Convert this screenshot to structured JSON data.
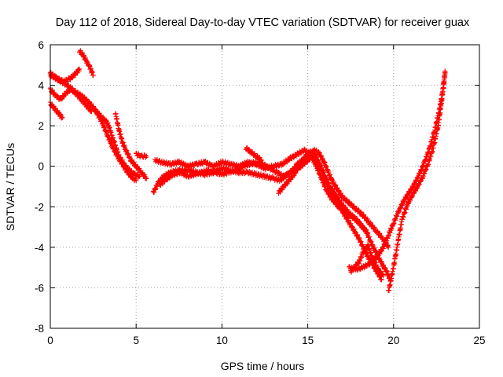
{
  "chart_data": {
    "type": "scatter",
    "title": "Day 112 of 2018, Sidereal Day-to-day VTEC variation (SDTVAR) for receiver guax",
    "xlabel": "GPS time / hours",
    "ylabel": "SDTVAR / TECUs",
    "xlim": [
      0,
      25
    ],
    "ylim": [
      -8,
      6
    ],
    "x_ticks": [
      0,
      5,
      10,
      15,
      20,
      25
    ],
    "y_ticks": [
      -8,
      -6,
      -4,
      -2,
      0,
      2,
      4,
      6
    ],
    "x_tick_labels": [
      "0",
      "5",
      "10",
      "15",
      "20",
      "25"
    ],
    "y_tick_labels": [
      "-8",
      "-6",
      "-4",
      "-2",
      "0",
      "2",
      "4",
      "6"
    ],
    "grid": true,
    "legend": "none",
    "marker": "plus",
    "color": "#ff0000",
    "series": [
      {
        "tracks": [
          [
            0.0,
            4.6
          ],
          [
            0.3,
            4.4
          ],
          [
            0.6,
            4.2
          ],
          [
            1.0,
            4.0
          ],
          [
            1.4,
            3.7
          ],
          [
            1.8,
            3.5
          ],
          [
            2.2,
            3.2
          ],
          [
            2.6,
            2.8
          ],
          [
            3.0,
            2.2
          ],
          [
            3.3,
            1.6
          ],
          [
            3.6,
            1.0
          ],
          [
            3.9,
            0.5
          ],
          [
            4.2,
            0.1
          ],
          [
            4.5,
            -0.3
          ],
          [
            4.8,
            -0.6
          ],
          [
            5.0,
            -0.7
          ]
        ]
      },
      {
        "tracks": [
          [
            0.0,
            3.8
          ],
          [
            0.3,
            3.5
          ],
          [
            0.6,
            3.3
          ],
          [
            0.9,
            3.6
          ],
          [
            1.2,
            3.8
          ],
          [
            1.5,
            3.6
          ],
          [
            1.8,
            3.3
          ],
          [
            2.1,
            3.0
          ],
          [
            2.4,
            2.7
          ]
        ]
      },
      {
        "tracks": [
          [
            0.0,
            3.1
          ],
          [
            0.3,
            2.8
          ],
          [
            0.6,
            2.5
          ],
          [
            0.7,
            2.4
          ]
        ]
      },
      {
        "tracks": [
          [
            0.0,
            4.5
          ],
          [
            0.4,
            4.3
          ],
          [
            0.8,
            4.2
          ],
          [
            1.1,
            4.3
          ],
          [
            1.4,
            4.5
          ],
          [
            1.7,
            4.8
          ]
        ]
      },
      {
        "tracks": [
          [
            1.7,
            5.7
          ],
          [
            1.9,
            5.5
          ],
          [
            2.1,
            5.2
          ],
          [
            2.3,
            4.9
          ],
          [
            2.5,
            4.5
          ]
        ]
      },
      {
        "tracks": [
          [
            2.6,
            2.8
          ],
          [
            2.8,
            2.6
          ],
          [
            3.0,
            2.4
          ],
          [
            3.2,
            2.3
          ],
          [
            3.4,
            2.0
          ],
          [
            3.6,
            1.5
          ],
          [
            3.8,
            1.0
          ],
          [
            4.0,
            0.5
          ],
          [
            4.3,
            0.1
          ],
          [
            4.6,
            -0.2
          ],
          [
            4.9,
            -0.4
          ],
          [
            5.2,
            -0.5
          ]
        ]
      },
      {
        "tracks": [
          [
            3.8,
            2.6
          ],
          [
            4.0,
            1.8
          ],
          [
            4.2,
            1.2
          ],
          [
            4.4,
            0.8
          ],
          [
            4.7,
            0.3
          ],
          [
            5.0,
            0.0
          ],
          [
            5.3,
            -0.3
          ],
          [
            5.6,
            -0.6
          ]
        ]
      },
      {
        "tracks": [
          [
            5.0,
            0.6
          ],
          [
            5.3,
            0.5
          ],
          [
            5.6,
            0.5
          ]
        ]
      },
      {
        "tracks": [
          [
            6.0,
            -1.3
          ],
          [
            6.3,
            -0.8
          ],
          [
            6.6,
            -0.5
          ],
          [
            7.0,
            -0.3
          ],
          [
            7.5,
            -0.2
          ],
          [
            8.0,
            -0.2
          ],
          [
            8.5,
            -0.3
          ],
          [
            9.0,
            -0.4
          ],
          [
            9.5,
            -0.3
          ],
          [
            10.0,
            -0.1
          ],
          [
            10.5,
            -0.2
          ],
          [
            11.0,
            -0.3
          ],
          [
            11.5,
            -0.3
          ],
          [
            12.0,
            -0.4
          ],
          [
            12.5,
            -0.5
          ],
          [
            13.0,
            -0.6
          ],
          [
            13.4,
            -0.7
          ],
          [
            13.8,
            -0.4
          ],
          [
            14.2,
            -0.2
          ],
          [
            14.6,
            0.0
          ],
          [
            15.0,
            0.3
          ],
          [
            15.3,
            0.5
          ],
          [
            15.6,
            0.2
          ],
          [
            15.9,
            -0.4
          ],
          [
            16.2,
            -1.0
          ],
          [
            16.6,
            -1.6
          ],
          [
            17.0,
            -2.2
          ],
          [
            17.5,
            -2.9
          ],
          [
            18.0,
            -3.6
          ],
          [
            18.4,
            -4.3
          ],
          [
            18.8,
            -4.9
          ],
          [
            19.1,
            -5.3
          ],
          [
            19.3,
            -5.6
          ]
        ]
      },
      {
        "tracks": [
          [
            6.1,
            0.3
          ],
          [
            6.5,
            0.2
          ],
          [
            7.0,
            0.1
          ],
          [
            7.5,
            0.2
          ],
          [
            8.0,
            0.0
          ],
          [
            8.5,
            0.1
          ],
          [
            9.0,
            0.2
          ],
          [
            9.5,
            0.0
          ],
          [
            10.0,
            0.2
          ],
          [
            10.5,
            0.1
          ],
          [
            11.0,
            0.0
          ],
          [
            11.5,
            0.2
          ],
          [
            12.0,
            0.1
          ],
          [
            12.5,
            -0.1
          ],
          [
            13.0,
            0.0
          ],
          [
            13.5,
            0.1
          ],
          [
            14.0,
            0.4
          ],
          [
            14.4,
            0.6
          ],
          [
            14.8,
            0.8
          ],
          [
            15.2,
            0.5
          ],
          [
            15.5,
            0.0
          ],
          [
            15.8,
            -0.6
          ],
          [
            16.1,
            -1.2
          ],
          [
            16.4,
            -1.6
          ],
          [
            16.8,
            -2.0
          ],
          [
            17.2,
            -2.3
          ],
          [
            17.6,
            -2.5
          ],
          [
            18.0,
            -2.8
          ],
          [
            18.4,
            -3.2
          ],
          [
            18.7,
            -3.8
          ],
          [
            19.0,
            -4.3
          ],
          [
            19.3,
            -4.8
          ],
          [
            19.6,
            -5.2
          ],
          [
            19.8,
            -5.6
          ]
        ]
      },
      {
        "tracks": [
          [
            6.4,
            -0.9
          ],
          [
            6.8,
            -0.6
          ],
          [
            7.2,
            -0.4
          ],
          [
            7.6,
            -0.3
          ],
          [
            8.0,
            -0.5
          ],
          [
            8.4,
            -0.4
          ],
          [
            8.8,
            -0.3
          ],
          [
            9.2,
            -0.2
          ],
          [
            9.6,
            -0.3
          ],
          [
            10.0,
            -0.4
          ],
          [
            10.4,
            -0.3
          ],
          [
            10.8,
            -0.2
          ],
          [
            11.2,
            0.0
          ],
          [
            11.6,
            0.1
          ],
          [
            12.0,
            0.2
          ],
          [
            12.4,
            0.1
          ],
          [
            12.8,
            -0.1
          ],
          [
            13.2,
            -0.3
          ],
          [
            13.6,
            -0.5
          ],
          [
            14.0,
            -0.3
          ],
          [
            14.4,
            0.1
          ],
          [
            14.8,
            0.4
          ],
          [
            15.1,
            0.7
          ],
          [
            15.4,
            0.6
          ],
          [
            15.7,
            0.1
          ],
          [
            16.0,
            -0.5
          ],
          [
            16.3,
            -1.0
          ],
          [
            16.6,
            -1.4
          ],
          [
            17.0,
            -1.9
          ],
          [
            17.4,
            -2.3
          ],
          [
            17.8,
            -2.6
          ],
          [
            18.2,
            -3.0
          ],
          [
            18.5,
            -3.3
          ]
        ]
      },
      {
        "tracks": [
          [
            11.4,
            0.9
          ],
          [
            11.7,
            0.7
          ],
          [
            12.0,
            0.5
          ],
          [
            12.3,
            0.3
          ]
        ]
      },
      {
        "tracks": [
          [
            13.3,
            -1.3
          ],
          [
            13.6,
            -1.0
          ],
          [
            13.9,
            -0.7
          ],
          [
            14.2,
            -0.4
          ],
          [
            14.5,
            0.0
          ],
          [
            14.8,
            0.3
          ],
          [
            15.1,
            0.6
          ],
          [
            15.4,
            0.8
          ],
          [
            15.7,
            0.6
          ],
          [
            16.0,
            0.1
          ],
          [
            16.2,
            -0.3
          ],
          [
            16.4,
            -0.7
          ],
          [
            16.7,
            -1.1
          ],
          [
            17.0,
            -1.5
          ],
          [
            17.4,
            -1.8
          ],
          [
            17.8,
            -2.1
          ],
          [
            18.2,
            -2.4
          ],
          [
            18.6,
            -2.8
          ],
          [
            19.0,
            -3.2
          ],
          [
            19.4,
            -3.6
          ],
          [
            19.7,
            -4.0
          ]
        ]
      },
      {
        "tracks": [
          [
            17.4,
            -5.0
          ],
          [
            17.8,
            -5.1
          ],
          [
            18.2,
            -5.0
          ],
          [
            18.6,
            -4.8
          ],
          [
            19.0,
            -4.5
          ],
          [
            19.4,
            -4.0
          ],
          [
            19.7,
            -3.4
          ],
          [
            20.0,
            -2.8
          ],
          [
            20.3,
            -2.2
          ],
          [
            20.6,
            -1.7
          ],
          [
            20.9,
            -1.3
          ],
          [
            21.2,
            -0.9
          ],
          [
            21.5,
            -0.4
          ],
          [
            21.8,
            0.2
          ],
          [
            22.1,
            0.9
          ],
          [
            22.4,
            1.8
          ],
          [
            22.7,
            2.9
          ],
          [
            22.9,
            3.9
          ],
          [
            23.0,
            4.6
          ]
        ]
      },
      {
        "tracks": [
          [
            19.7,
            -6.2
          ],
          [
            19.9,
            -5.4
          ],
          [
            20.1,
            -4.5
          ],
          [
            20.3,
            -3.5
          ],
          [
            20.5,
            -2.6
          ],
          [
            20.8,
            -1.9
          ],
          [
            21.1,
            -1.4
          ],
          [
            21.4,
            -1.0
          ],
          [
            21.7,
            -0.5
          ],
          [
            22.0,
            0.1
          ],
          [
            22.3,
            0.9
          ],
          [
            22.6,
            2.0
          ],
          [
            22.8,
            3.2
          ],
          [
            23.0,
            4.7
          ]
        ]
      },
      {
        "tracks": [
          [
            17.5,
            -5.2
          ],
          [
            17.7,
            -5.0
          ],
          [
            18.0,
            -4.7
          ],
          [
            18.2,
            -4.3
          ],
          [
            18.5,
            -3.9
          ],
          [
            18.8,
            -4.6
          ],
          [
            19.1,
            -5.1
          ],
          [
            19.4,
            -5.4
          ]
        ]
      }
    ]
  }
}
